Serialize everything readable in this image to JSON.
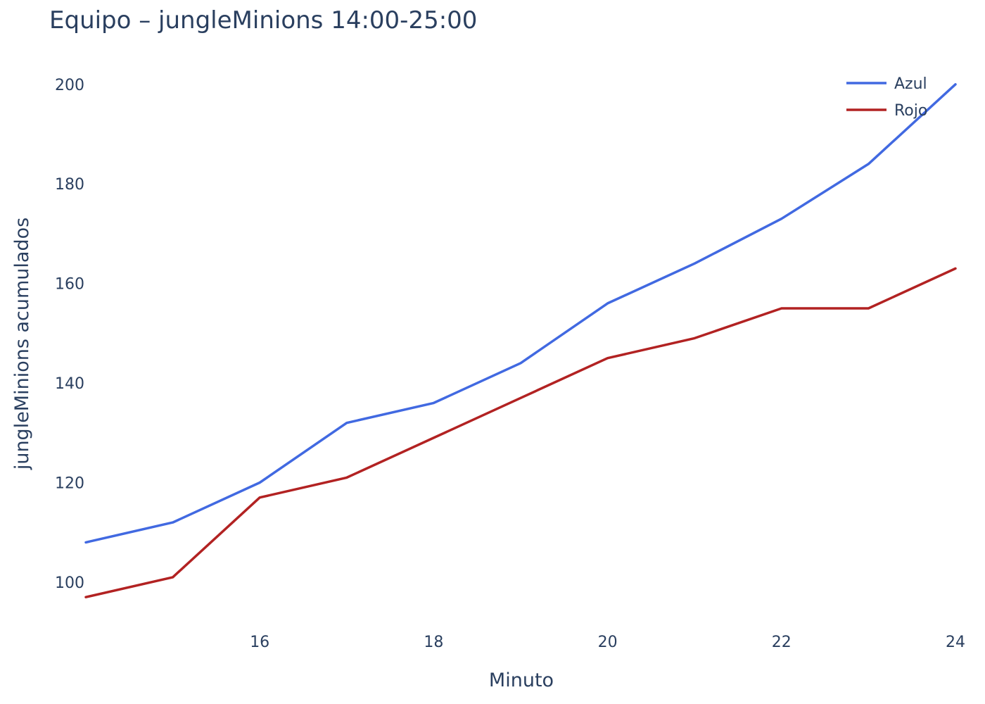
{
  "chart_data": {
    "type": "line",
    "title": "Equipo – jungleMinions 14:00-25:00",
    "xlabel": "Minuto",
    "ylabel": "jungleMinions acumulados",
    "x": [
      14,
      15,
      16,
      17,
      18,
      19,
      20,
      21,
      22,
      23,
      24
    ],
    "xlim": [
      14,
      24
    ],
    "ylim": [
      92.5,
      203.5
    ],
    "x_ticks": [
      "16",
      "18",
      "20",
      "22",
      "24"
    ],
    "y_ticks": [
      "100",
      "120",
      "140",
      "160",
      "180",
      "200"
    ],
    "grid": false,
    "legend_position": "top-right",
    "series": [
      {
        "name": "Azul",
        "color": "#4169e1",
        "values": [
          108,
          112,
          120,
          132,
          136,
          144,
          156,
          164,
          173,
          184,
          200
        ]
      },
      {
        "name": "Rojo",
        "color": "#b22222",
        "values": [
          97,
          101,
          117,
          121,
          129,
          137,
          145,
          149,
          155,
          155,
          163
        ]
      }
    ]
  }
}
